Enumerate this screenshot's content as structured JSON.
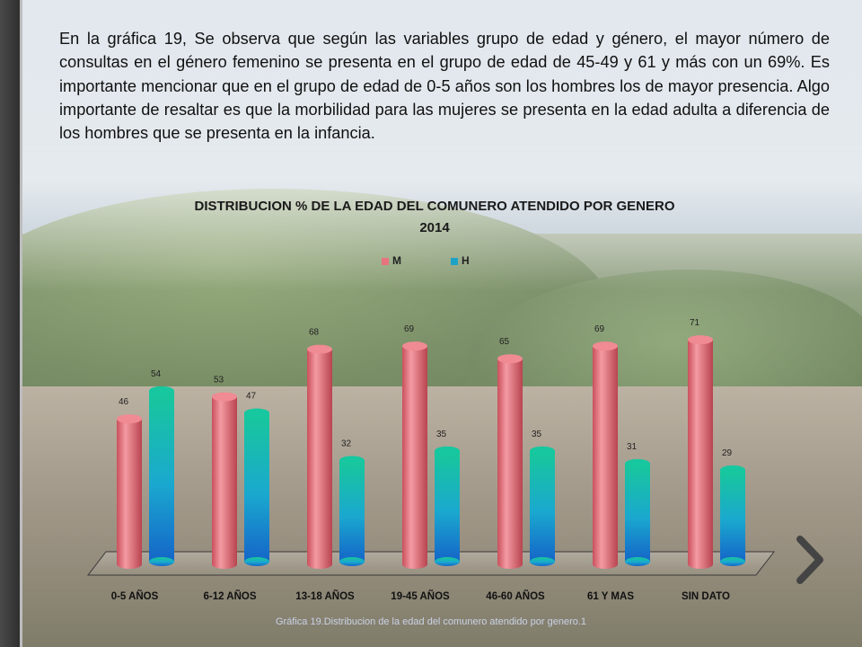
{
  "slide": {
    "paragraph": "En la gráfica 19, Se observa que según las variables grupo de edad  y género, el mayor número de consultas en el género femenino se presenta en el grupo de edad de 45-49 y 61 y más con un 69%. Es importante mencionar que en el grupo de edad de 0-5 años son los hombres los de mayor presencia. Algo importante de resaltar es que la morbilidad para las mujeres se presenta en la edad adulta a diferencia de los hombres que se presenta en la infancia.",
    "caption": "Gráfica 19.Distribucion de la edad del comunero atendido por genero.1",
    "nav_icon": "chevron-right-icon"
  },
  "chart_data": {
    "type": "bar",
    "title": "DISTRIBUCION % DE LA EDAD DEL COMUNERO ATENDIDO POR GENERO",
    "subtitle": "2014",
    "categories": [
      "0-5 AÑOS",
      "6-12 AÑOS",
      "13-18 AÑOS",
      "19-45 AÑOS",
      "46-60 AÑOS",
      "61 Y MAS",
      "SIN DATO"
    ],
    "series": [
      {
        "name": "M",
        "values": [
          46,
          53,
          68,
          69,
          65,
          69,
          71
        ],
        "color": "#e8737d"
      },
      {
        "name": "H",
        "values": [
          54,
          47,
          32,
          35,
          35,
          31,
          29
        ],
        "color": "#1ea3c7"
      }
    ],
    "ylim": [
      0,
      100
    ],
    "legend_position": "top",
    "grid": false,
    "style": "3d-cylinder"
  }
}
